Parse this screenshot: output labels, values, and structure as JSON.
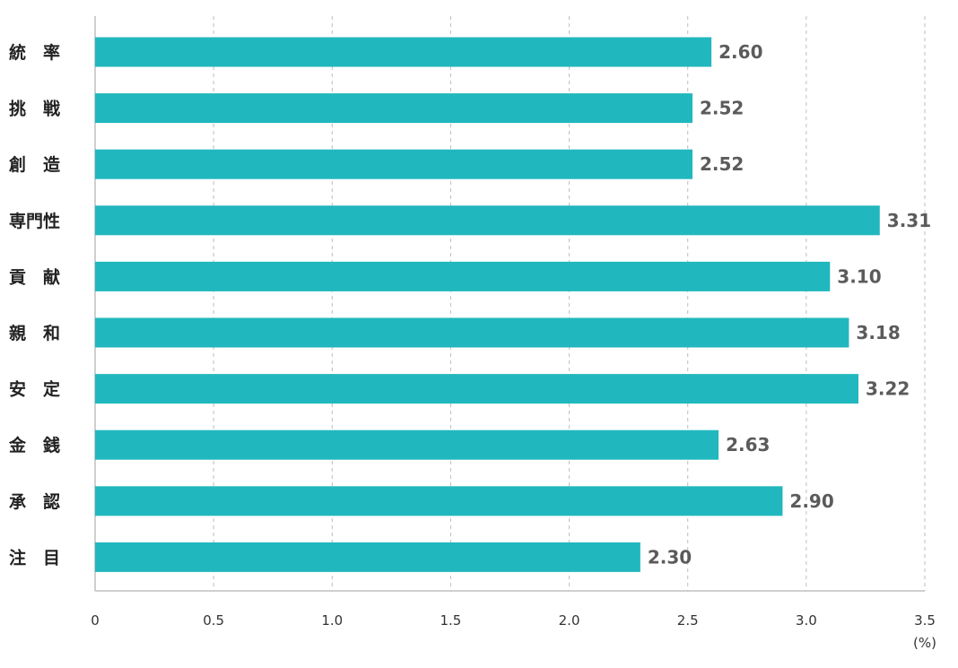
{
  "chart_data": {
    "type": "bar",
    "orientation": "horizontal",
    "categories": [
      "統　率",
      "挑　戦",
      "創　造",
      "専門性",
      "貢　献",
      "親　和",
      "安　定",
      "金　銭",
      "承　認",
      "注　目"
    ],
    "values": [
      2.6,
      2.52,
      2.52,
      3.31,
      3.1,
      3.18,
      3.22,
      2.63,
      2.9,
      2.3
    ],
    "value_labels": [
      "2.60",
      "2.52",
      "2.52",
      "3.31",
      "3.10",
      "3.18",
      "3.22",
      "2.63",
      "2.90",
      "2.30"
    ],
    "xlim": [
      0,
      3.5
    ],
    "xticks": [
      0,
      0.5,
      1.0,
      1.5,
      2.0,
      2.5,
      3.0,
      3.5
    ],
    "xtick_labels": [
      "0",
      "0.5",
      "1.0",
      "1.5",
      "2.0",
      "2.5",
      "3.0",
      "3.5"
    ],
    "x_unit": "(%)",
    "grid": true,
    "bar_color": "#21b7be",
    "title": "",
    "xlabel": "",
    "ylabel": ""
  }
}
